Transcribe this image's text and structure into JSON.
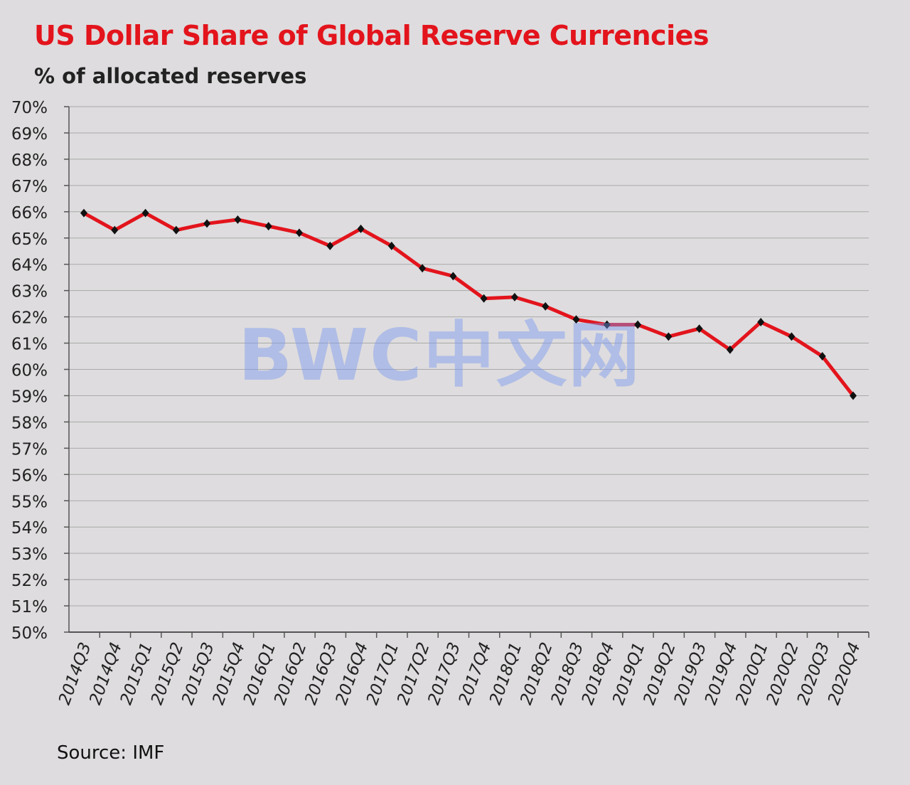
{
  "title": "US Dollar Share of Global Reserve Currencies",
  "subtitle": "% of allocated reserves",
  "source": "Source: IMF",
  "watermark": "BWC中文网",
  "chart_data": {
    "type": "line",
    "title": "US Dollar Share of Global Reserve Currencies",
    "subtitle": "% of allocated reserves",
    "xlabel": "",
    "ylabel": "",
    "ylim": [
      50,
      70
    ],
    "yticks": [
      "50%",
      "51%",
      "52%",
      "53%",
      "54%",
      "55%",
      "56%",
      "57%",
      "58%",
      "59%",
      "60%",
      "61%",
      "62%",
      "63%",
      "64%",
      "65%",
      "66%",
      "67%",
      "68%",
      "69%",
      "70%"
    ],
    "grid": true,
    "line_color": "#e3141c",
    "marker_color": "#111111",
    "categories": [
      "2014Q3",
      "2014Q4",
      "2015Q1",
      "2015Q2",
      "2015Q3",
      "2015Q4",
      "2016Q1",
      "2016Q2",
      "2016Q3",
      "2016Q4",
      "2017Q1",
      "2017Q2",
      "2017Q3",
      "2017Q4",
      "2018Q1",
      "2018Q2",
      "2018Q3",
      "2018Q4",
      "2019Q1",
      "2019Q2",
      "2019Q3",
      "2019Q4",
      "2020Q1",
      "2020Q2",
      "2020Q3",
      "2020Q4"
    ],
    "values": [
      65.95,
      65.3,
      65.95,
      65.3,
      65.55,
      65.7,
      65.45,
      65.2,
      64.7,
      65.35,
      64.7,
      63.85,
      63.55,
      62.7,
      62.75,
      62.4,
      61.9,
      61.7,
      61.7,
      61.25,
      61.55,
      60.75,
      61.8,
      61.25,
      60.5,
      59.0
    ]
  }
}
